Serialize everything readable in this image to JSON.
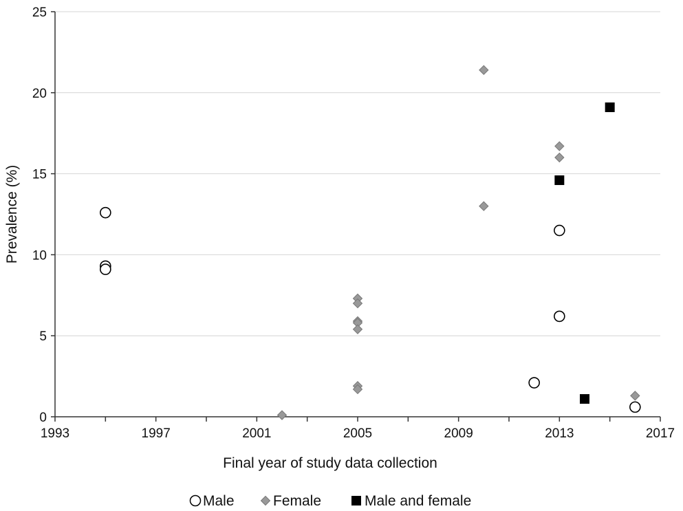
{
  "chart_data": {
    "type": "scatter",
    "title": "",
    "xlabel": "Final year of study data collection",
    "ylabel": "Prevalence (%)",
    "xlim": [
      1993,
      2017
    ],
    "ylim": [
      0,
      25
    ],
    "xticks": [
      "1993",
      "1997",
      "2001",
      "2005",
      "2009",
      "2013",
      "2017"
    ],
    "yticks": [
      "0",
      "5",
      "10",
      "15",
      "20",
      "25"
    ],
    "grid": "horizontal",
    "legend_position": "bottom-center",
    "series": [
      {
        "name": "Male",
        "marker": "open-circle",
        "color": "#000000",
        "points": [
          {
            "x": 1995,
            "y": 12.6
          },
          {
            "x": 1995,
            "y": 9.3
          },
          {
            "x": 1995,
            "y": 9.1
          },
          {
            "x": 2012,
            "y": 2.1
          },
          {
            "x": 2013,
            "y": 11.5
          },
          {
            "x": 2013,
            "y": 6.2
          },
          {
            "x": 2016,
            "y": 0.6
          }
        ]
      },
      {
        "name": "Female",
        "marker": "diamond",
        "color": "#999999",
        "points": [
          {
            "x": 2002,
            "y": 0.1
          },
          {
            "x": 2005,
            "y": 7.3
          },
          {
            "x": 2005,
            "y": 7.0
          },
          {
            "x": 2005,
            "y": 5.9
          },
          {
            "x": 2005,
            "y": 5.8
          },
          {
            "x": 2005,
            "y": 5.4
          },
          {
            "x": 2005,
            "y": 1.9
          },
          {
            "x": 2005,
            "y": 1.7
          },
          {
            "x": 2010,
            "y": 21.4
          },
          {
            "x": 2010,
            "y": 13.0
          },
          {
            "x": 2013,
            "y": 16.7
          },
          {
            "x": 2013,
            "y": 16.0
          },
          {
            "x": 2016,
            "y": 1.3
          }
        ]
      },
      {
        "name": "Male and female",
        "marker": "filled-square",
        "color": "#000000",
        "points": [
          {
            "x": 2013,
            "y": 14.6
          },
          {
            "x": 2014,
            "y": 1.1
          },
          {
            "x": 2015,
            "y": 19.1
          }
        ]
      }
    ]
  }
}
